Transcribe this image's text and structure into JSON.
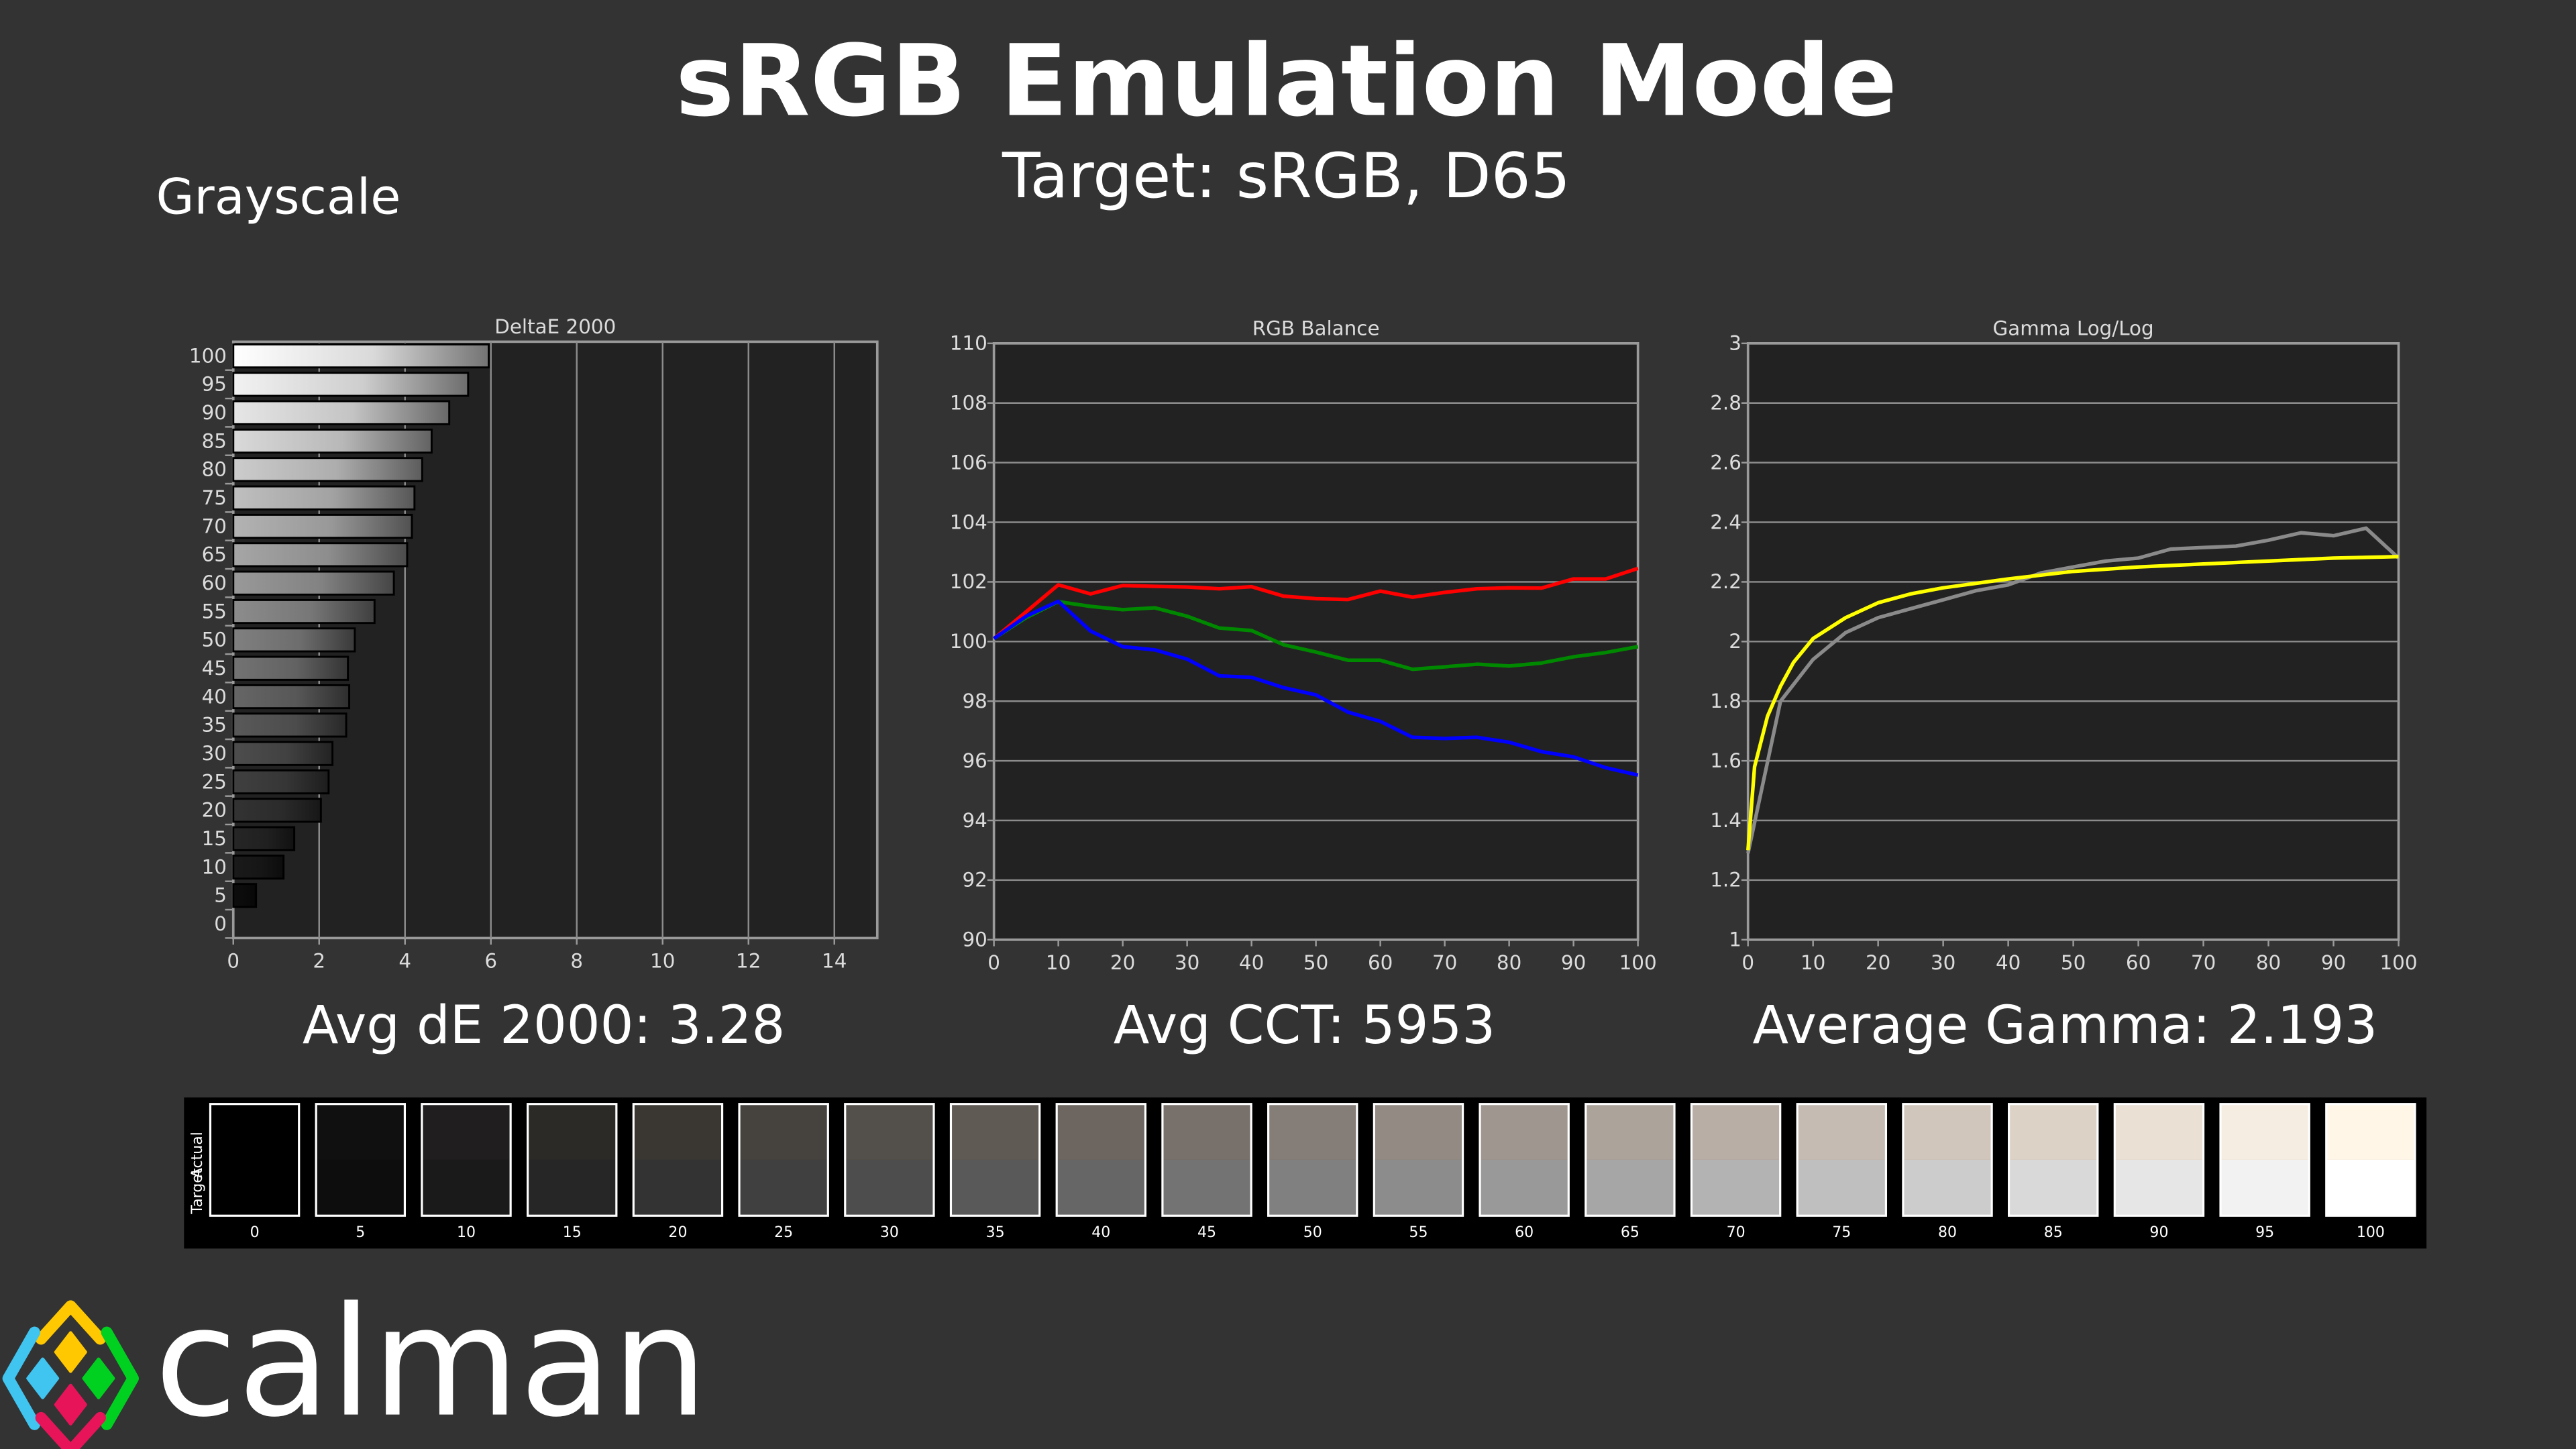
{
  "header": {
    "title": "sRGB Emulation Mode",
    "subtitle": "Target: sRGB, D65",
    "section": "Grayscale"
  },
  "summary": {
    "avg_de": "Avg dE 2000: 3.28",
    "avg_cct": "Avg CCT: 5953",
    "avg_gamma": "Average Gamma: 2.193"
  },
  "logo": {
    "text": "calman",
    "colors": [
      "#ffc800",
      "#40c4f0",
      "#00d020",
      "#e8145a"
    ]
  },
  "colors": {
    "background": "#333333",
    "plot_bg": "#222222",
    "grid": "#8c8c8c",
    "red": "#ff0000",
    "green": "#008800",
    "blue": "#0000ff",
    "gamma_actual": "#8a8a8a",
    "gamma_target": "#ffff00"
  },
  "chart_data": [
    {
      "type": "bar",
      "orientation": "horizontal",
      "title": "DeltaE 2000",
      "categories": [
        "0",
        "5",
        "10",
        "15",
        "20",
        "25",
        "30",
        "35",
        "40",
        "45",
        "50",
        "55",
        "60",
        "65",
        "70",
        "75",
        "80",
        "85",
        "90",
        "95",
        "100"
      ],
      "values": [
        0,
        0.53,
        1.17,
        1.42,
        2.04,
        2.22,
        2.31,
        2.63,
        2.7,
        2.67,
        2.83,
        3.29,
        3.74,
        4.05,
        4.16,
        4.22,
        4.4,
        4.62,
        5.03,
        5.47,
        5.95
      ],
      "xlim": [
        0,
        15
      ],
      "xticks": [
        "0",
        "2",
        "4",
        "6",
        "8",
        "10",
        "12",
        "14"
      ],
      "grid": true
    },
    {
      "type": "line",
      "title": "RGB Balance",
      "x": [
        0,
        5,
        10,
        15,
        20,
        25,
        30,
        35,
        40,
        45,
        50,
        55,
        60,
        65,
        70,
        75,
        80,
        85,
        90,
        95,
        100
      ],
      "series": [
        {
          "color": "#ff0000",
          "values": [
            100.1,
            101.0,
            101.9,
            101.6,
            101.88,
            101.85,
            101.83,
            101.77,
            101.84,
            101.52,
            101.44,
            101.41,
            101.69,
            101.49,
            101.65,
            101.77,
            101.8,
            101.79,
            102.1,
            102.1,
            102.45
          ]
        },
        {
          "color": "#008800",
          "values": [
            100.1,
            100.8,
            101.34,
            101.18,
            101.07,
            101.13,
            100.85,
            100.45,
            100.37,
            99.89,
            99.65,
            99.37,
            99.37,
            99.07,
            99.15,
            99.24,
            99.18,
            99.28,
            99.49,
            99.63,
            99.83
          ]
        },
        {
          "color": "#0000ff",
          "values": [
            100.1,
            100.85,
            101.35,
            100.35,
            99.83,
            99.72,
            99.41,
            98.85,
            98.8,
            98.45,
            98.21,
            97.63,
            97.32,
            96.79,
            96.75,
            96.79,
            96.62,
            96.31,
            96.13,
            95.77,
            95.52
          ]
        }
      ],
      "xlim": [
        0,
        100
      ],
      "ylim": [
        90,
        110
      ],
      "xticks": [
        "0",
        "10",
        "20",
        "30",
        "40",
        "50",
        "60",
        "70",
        "80",
        "90",
        "100"
      ],
      "yticks": [
        "90",
        "92",
        "94",
        "96",
        "98",
        "100",
        "102",
        "104",
        "106",
        "108",
        "110"
      ],
      "grid": true
    },
    {
      "type": "line",
      "title": "Gamma Log/Log",
      "series": [
        {
          "color": "#8a8a8a",
          "x": [
            0,
            5,
            10,
            15,
            20,
            25,
            30,
            35,
            40,
            45,
            50,
            55,
            60,
            65,
            70,
            75,
            80,
            85,
            90,
            95,
            100
          ],
          "values": [
            1.29,
            1.8,
            1.94,
            2.03,
            2.08,
            2.11,
            2.14,
            2.17,
            2.19,
            2.23,
            2.25,
            2.27,
            2.28,
            2.31,
            2.315,
            2.32,
            2.34,
            2.365,
            2.355,
            2.38,
            2.28
          ]
        },
        {
          "color": "#ffff00",
          "x": [
            0,
            1,
            3,
            5,
            7,
            10,
            15,
            20,
            25,
            30,
            40,
            50,
            60,
            70,
            80,
            90,
            100
          ],
          "values": [
            1.3,
            1.58,
            1.75,
            1.85,
            1.93,
            2.01,
            2.08,
            2.13,
            2.16,
            2.18,
            2.21,
            2.235,
            2.25,
            2.26,
            2.27,
            2.28,
            2.285
          ]
        }
      ],
      "xlim": [
        0,
        100
      ],
      "ylim": [
        1,
        3
      ],
      "xticks": [
        "0",
        "10",
        "20",
        "30",
        "40",
        "50",
        "60",
        "70",
        "80",
        "90",
        "100"
      ],
      "yticks": [
        "1",
        "1.2",
        "1.4",
        "1.6",
        "1.8",
        "2",
        "2.2",
        "2.4",
        "2.6",
        "2.8",
        "3"
      ],
      "grid": true
    }
  ],
  "swatches": {
    "actual_label": "Actual",
    "target_label": "Target",
    "levels": [
      "0",
      "5",
      "10",
      "15",
      "20",
      "25",
      "30",
      "35",
      "40",
      "45",
      "50",
      "55",
      "60",
      "65",
      "70",
      "75",
      "80",
      "85",
      "90",
      "95",
      "100"
    ],
    "actual": [
      "#000000",
      "#101010",
      "#201e1e",
      "#2c2a27",
      "#3a3733",
      "#46433f",
      "#534f4a",
      "#605a55",
      "#6c6560",
      "#78706b",
      "#857d77",
      "#928a83",
      "#9f968f",
      "#aca39b",
      "#b8aea6",
      "#c5bbb2",
      "#d1c6bc",
      "#ddd2c6",
      "#eae0d4",
      "#f6ede2",
      "#fff6e8"
    ],
    "target": [
      "#000000",
      "#0d0d0d",
      "#1a1a1a",
      "#262626",
      "#333333",
      "#404040",
      "#4d4d4d",
      "#595959",
      "#666666",
      "#737373",
      "#808080",
      "#8c8c8c",
      "#999999",
      "#a6a6a6",
      "#b3b3b3",
      "#bfbfbf",
      "#cccccc",
      "#d9d9d9",
      "#e6e6e6",
      "#f2f2f2",
      "#ffffff"
    ]
  }
}
